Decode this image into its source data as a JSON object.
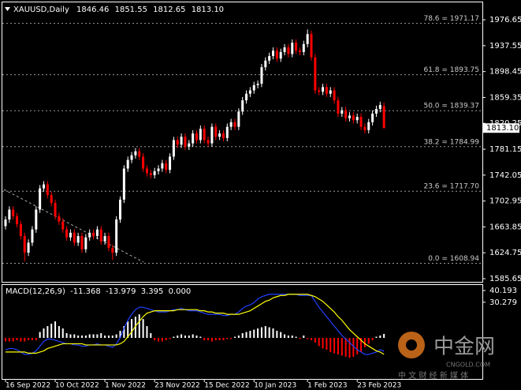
{
  "chart_data": [
    {
      "type": "candlestick",
      "title": "XAUUSD,Daily",
      "ohlc_labels": [
        "1846.46",
        "1851.55",
        "1812.65",
        "1813.10"
      ],
      "up_color": "#ffffff",
      "down_color": "#ff0000",
      "open": [
        1665,
        1675,
        1690,
        1680,
        1668,
        1650,
        1625,
        1640,
        1660,
        1690,
        1722,
        1728,
        1712,
        1700,
        1680,
        1672,
        1660,
        1648,
        1655,
        1640,
        1650,
        1630,
        1648,
        1655,
        1650,
        1660,
        1642,
        1650,
        1632,
        1625,
        1675,
        1705,
        1752,
        1765,
        1772,
        1778,
        1770,
        1752,
        1745,
        1742,
        1748,
        1752,
        1760,
        1750,
        1770,
        1795,
        1788,
        1800,
        1785,
        1790,
        1805,
        1795,
        1812,
        1795,
        1790,
        1815,
        1800,
        1805,
        1798,
        1815,
        1822,
        1815,
        1838,
        1855,
        1865,
        1870,
        1878,
        1880,
        1905,
        1915,
        1922,
        1930,
        1918,
        1928,
        1935,
        1925,
        1942,
        1930,
        1928,
        1940,
        1955,
        1920,
        1870,
        1868,
        1875,
        1865,
        1870,
        1855,
        1835,
        1840,
        1828,
        1832,
        1825,
        1830,
        1815,
        1810,
        1822,
        1835,
        1842,
        1846.46
      ],
      "high": [
        1680,
        1695,
        1695,
        1685,
        1673,
        1655,
        1645,
        1665,
        1695,
        1727,
        1733,
        1733,
        1717,
        1705,
        1685,
        1677,
        1665,
        1660,
        1660,
        1655,
        1655,
        1653,
        1660,
        1660,
        1665,
        1665,
        1655,
        1655,
        1637,
        1680,
        1710,
        1757,
        1770,
        1777,
        1783,
        1783,
        1775,
        1757,
        1750,
        1753,
        1757,
        1765,
        1765,
        1775,
        1800,
        1800,
        1805,
        1805,
        1795,
        1810,
        1810,
        1817,
        1817,
        1800,
        1820,
        1820,
        1810,
        1810,
        1820,
        1827,
        1827,
        1843,
        1860,
        1870,
        1875,
        1883,
        1885,
        1910,
        1920,
        1927,
        1935,
        1935,
        1933,
        1940,
        1940,
        1947,
        1947,
        1935,
        1945,
        1962,
        1960,
        1925,
        1875,
        1880,
        1880,
        1875,
        1875,
        1860,
        1845,
        1845,
        1837,
        1837,
        1835,
        1835,
        1820,
        1827,
        1840,
        1847,
        1853,
        1851.55
      ],
      "low": [
        1660,
        1670,
        1675,
        1663,
        1645,
        1612,
        1620,
        1635,
        1655,
        1685,
        1717,
        1707,
        1695,
        1675,
        1667,
        1655,
        1643,
        1643,
        1635,
        1635,
        1625,
        1625,
        1643,
        1645,
        1645,
        1637,
        1637,
        1627,
        1614,
        1620,
        1670,
        1700,
        1747,
        1760,
        1767,
        1765,
        1747,
        1740,
        1737,
        1737,
        1743,
        1747,
        1745,
        1745,
        1765,
        1783,
        1783,
        1780,
        1780,
        1785,
        1790,
        1790,
        1790,
        1785,
        1785,
        1795,
        1795,
        1793,
        1793,
        1810,
        1810,
        1810,
        1833,
        1850,
        1860,
        1865,
        1873,
        1875,
        1900,
        1910,
        1917,
        1913,
        1913,
        1923,
        1920,
        1920,
        1925,
        1923,
        1923,
        1935,
        1915,
        1865,
        1863,
        1863,
        1860,
        1860,
        1850,
        1830,
        1830,
        1823,
        1823,
        1820,
        1820,
        1810,
        1805,
        1805,
        1817,
        1830,
        1837,
        1812.65
      ],
      "close": [
        1675,
        1690,
        1680,
        1668,
        1650,
        1625,
        1640,
        1660,
        1690,
        1722,
        1728,
        1712,
        1700,
        1680,
        1672,
        1660,
        1648,
        1655,
        1640,
        1650,
        1630,
        1648,
        1655,
        1650,
        1660,
        1642,
        1650,
        1632,
        1625,
        1675,
        1705,
        1752,
        1765,
        1772,
        1778,
        1770,
        1752,
        1745,
        1742,
        1748,
        1752,
        1760,
        1750,
        1770,
        1795,
        1788,
        1800,
        1785,
        1790,
        1805,
        1795,
        1812,
        1795,
        1790,
        1815,
        1800,
        1805,
        1798,
        1815,
        1822,
        1815,
        1838,
        1855,
        1865,
        1870,
        1878,
        1880,
        1905,
        1915,
        1922,
        1930,
        1918,
        1928,
        1935,
        1925,
        1942,
        1930,
        1928,
        1940,
        1955,
        1920,
        1870,
        1868,
        1875,
        1865,
        1870,
        1855,
        1835,
        1840,
        1828,
        1832,
        1825,
        1830,
        1815,
        1810,
        1822,
        1835,
        1842,
        1848,
        1813.1
      ],
      "ylim": [
        1580.87,
        2002.95
      ],
      "yticks": [
        1976.65,
        1937.55,
        1898.45,
        1859.35,
        1820.25,
        1781.15,
        1742.05,
        1702.95,
        1663.85,
        1624.75,
        1585.65
      ],
      "xticks": [
        {
          "value": 0,
          "label": "16 Sep 2022"
        },
        {
          "value": 13,
          "label": "10 Oct 2022"
        },
        {
          "value": 26,
          "label": "1 Nov 2022"
        },
        {
          "value": 39,
          "label": "23 Nov 2022"
        },
        {
          "value": 52,
          "label": "15 Dec 2022"
        },
        {
          "value": 65,
          "label": "10 Jan 2023"
        },
        {
          "value": 79,
          "label": "1 Feb 2023"
        },
        {
          "value": 92,
          "label": "23 Feb 2023"
        }
      ],
      "fib_levels": [
        {
          "value": 1971.17,
          "label": "78.6 = 1971.17"
        },
        {
          "value": 1893.75,
          "label": "61.8 = 1893.75"
        },
        {
          "value": 1839.37,
          "label": "50.0 = 1839.37"
        },
        {
          "value": 1784.99,
          "label": "38.2 = 1784.99"
        },
        {
          "value": 1717.7,
          "label": "23.6 = 1717.70"
        },
        {
          "value": 1608.94,
          "label": "0.0 = 1608.94"
        }
      ]
    },
    {
      "type": "macd",
      "title": "MACD(12,26,9)",
      "series": [
        {
          "color": "#2040ff",
          "kind": "line",
          "values": [
            -10,
            -9,
            -9,
            -10,
            -12,
            -14,
            -14,
            -13,
            -11,
            -7,
            -3,
            -1,
            -1,
            -2,
            -3,
            -4,
            -5,
            -5,
            -6,
            -6,
            -7,
            -7,
            -6,
            -6,
            -5,
            -6,
            -6,
            -7,
            -8,
            -5,
            0,
            8,
            15,
            20,
            24,
            26,
            26,
            25,
            24,
            23,
            22,
            22,
            22,
            23,
            24,
            24,
            25,
            24,
            23,
            23,
            23,
            22,
            21,
            20,
            20,
            20,
            20,
            19,
            19,
            20,
            20,
            22,
            25,
            27,
            28,
            30,
            33,
            35,
            36,
            37,
            37,
            37,
            37,
            37,
            37,
            37,
            37,
            36,
            36,
            36,
            36,
            31,
            26,
            22,
            18,
            14,
            10,
            6,
            2,
            -1,
            -4,
            -7,
            -10,
            -12,
            -14,
            -14,
            -13,
            -12,
            -10,
            -11.368
          ]
        },
        {
          "color": "#ffff00",
          "kind": "line",
          "values": [
            -12,
            -12,
            -12,
            -12,
            -12,
            -12,
            -13,
            -13,
            -13,
            -12,
            -11,
            -9,
            -8,
            -7,
            -6,
            -5,
            -5,
            -5,
            -5,
            -5,
            -5,
            -6,
            -6,
            -6,
            -6,
            -6,
            -6,
            -6,
            -6,
            -6,
            -5,
            -3,
            1,
            5,
            10,
            14,
            18,
            21,
            22,
            23,
            23,
            23,
            23,
            23,
            23,
            24,
            24,
            24,
            24,
            24,
            24,
            23,
            23,
            22,
            22,
            21,
            21,
            21,
            20,
            20,
            20,
            20,
            21,
            22,
            23,
            25,
            27,
            29,
            31,
            32,
            34,
            35,
            36,
            36,
            37,
            37,
            37,
            37,
            37,
            37,
            36,
            35,
            33,
            31,
            28,
            25,
            22,
            18,
            15,
            11,
            7,
            4,
            1,
            -2,
            -5,
            -7,
            -9,
            -11,
            -12,
            -13.979
          ]
        },
        {
          "kind": "histogram",
          "up_color": "#ffffff",
          "down_color": "#ff0000",
          "values": [
            -3,
            -3,
            -3,
            -2,
            -3,
            -3,
            -2,
            -2,
            -2,
            5,
            8,
            10,
            12,
            14,
            10,
            8,
            4,
            3,
            3,
            2,
            2,
            2,
            3,
            3,
            3,
            4,
            2,
            2,
            2,
            3,
            6,
            10,
            14,
            16,
            18,
            20,
            16,
            10,
            4,
            -2,
            -3,
            -3,
            -2,
            -1,
            1,
            2,
            3,
            2,
            2,
            3,
            2,
            1,
            -2,
            -2,
            -3,
            -2,
            -2,
            -2,
            -1,
            -1,
            1,
            2,
            4,
            5,
            6,
            7,
            8,
            9,
            10,
            9,
            8,
            6,
            5,
            3,
            2,
            2,
            1,
            -1,
            2,
            -1,
            -2,
            -4,
            -7,
            -9,
            -10,
            -12,
            -13,
            -14,
            -15,
            -16,
            -17,
            -16,
            -14,
            -12,
            -8,
            -5,
            -2,
            1,
            2,
            3.395
          ]
        }
      ],
      "zero": {
        "value": 0,
        "label": "0.000"
      },
      "ylim": [
        -34.84,
        44.88
      ],
      "yticks": [
        40.193,
        30.279
      ]
    }
  ],
  "watermark": {
    "brand": "中金网",
    "site": "CNGOLD.COM",
    "slogan": "中 文 财 经 新 媒 体"
  }
}
